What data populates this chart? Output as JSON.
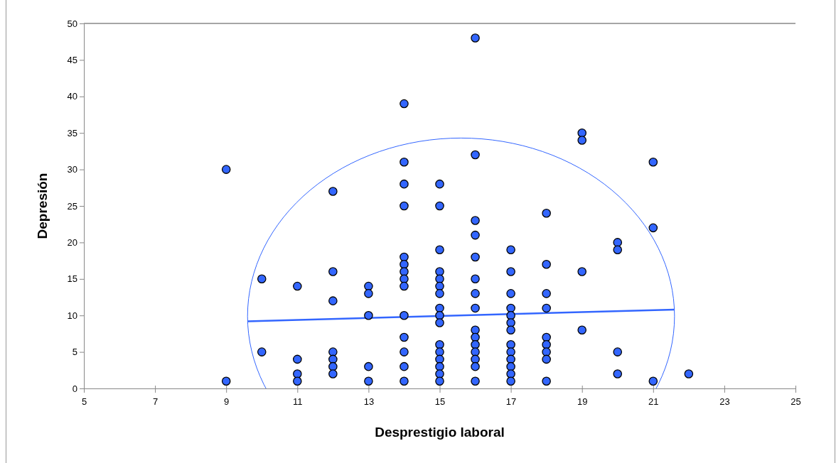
{
  "chart_data": {
    "type": "scatter",
    "xlabel": "Desprestigio laboral",
    "ylabel": "Depresión",
    "xlim": [
      5,
      25
    ],
    "xticks": [
      5,
      7,
      9,
      11,
      13,
      15,
      17,
      19,
      21,
      23,
      25
    ],
    "ylim": [
      0,
      50
    ],
    "yticks": [
      0,
      5,
      10,
      15,
      20,
      25,
      30,
      35,
      40,
      45,
      50
    ],
    "grid": false,
    "series": [
      {
        "marker": "circle",
        "color": "#3366ff",
        "x": [
          9,
          9,
          10,
          10,
          11,
          11,
          11,
          11,
          12,
          12,
          12,
          12,
          12,
          12,
          12,
          13,
          13,
          13,
          13,
          13,
          14,
          14,
          14,
          14,
          14,
          14,
          14,
          14,
          14,
          14,
          14,
          14,
          14,
          14,
          15,
          15,
          15,
          15,
          15,
          15,
          15,
          15,
          15,
          15,
          15,
          15,
          15,
          15,
          15,
          15,
          16,
          16,
          16,
          16,
          16,
          16,
          16,
          16,
          16,
          16,
          16,
          16,
          16,
          16,
          16,
          17,
          17,
          17,
          17,
          17,
          17,
          17,
          17,
          17,
          17,
          17,
          17,
          17,
          18,
          18,
          18,
          18,
          18,
          18,
          18,
          18,
          18,
          19,
          19,
          19,
          19,
          20,
          20,
          20,
          20,
          21,
          21,
          21,
          22
        ],
        "values": [
          30,
          1,
          15,
          5,
          14,
          4,
          2,
          1,
          27,
          16,
          12,
          5,
          4,
          3,
          2,
          14,
          13,
          10,
          3,
          1,
          39,
          31,
          28,
          25,
          18,
          17,
          16,
          15,
          14,
          10,
          7,
          5,
          3,
          1,
          28,
          25,
          19,
          16,
          15,
          14,
          13,
          11,
          10,
          9,
          6,
          5,
          4,
          3,
          2,
          1,
          48,
          32,
          23,
          21,
          18,
          15,
          13,
          11,
          8,
          7,
          6,
          5,
          4,
          3,
          1,
          19,
          16,
          13,
          11,
          10,
          9,
          8,
          6,
          5,
          4,
          3,
          2,
          1,
          24,
          17,
          13,
          11,
          7,
          6,
          5,
          4,
          1,
          35,
          34,
          16,
          8,
          20,
          19,
          5,
          2,
          31,
          22,
          1,
          2
        ]
      },
      {
        "type": "line",
        "marker": "none",
        "color": "#3366ff",
        "x": [
          9.6,
          21.6
        ],
        "values": [
          9.2,
          10.8
        ]
      }
    ]
  }
}
